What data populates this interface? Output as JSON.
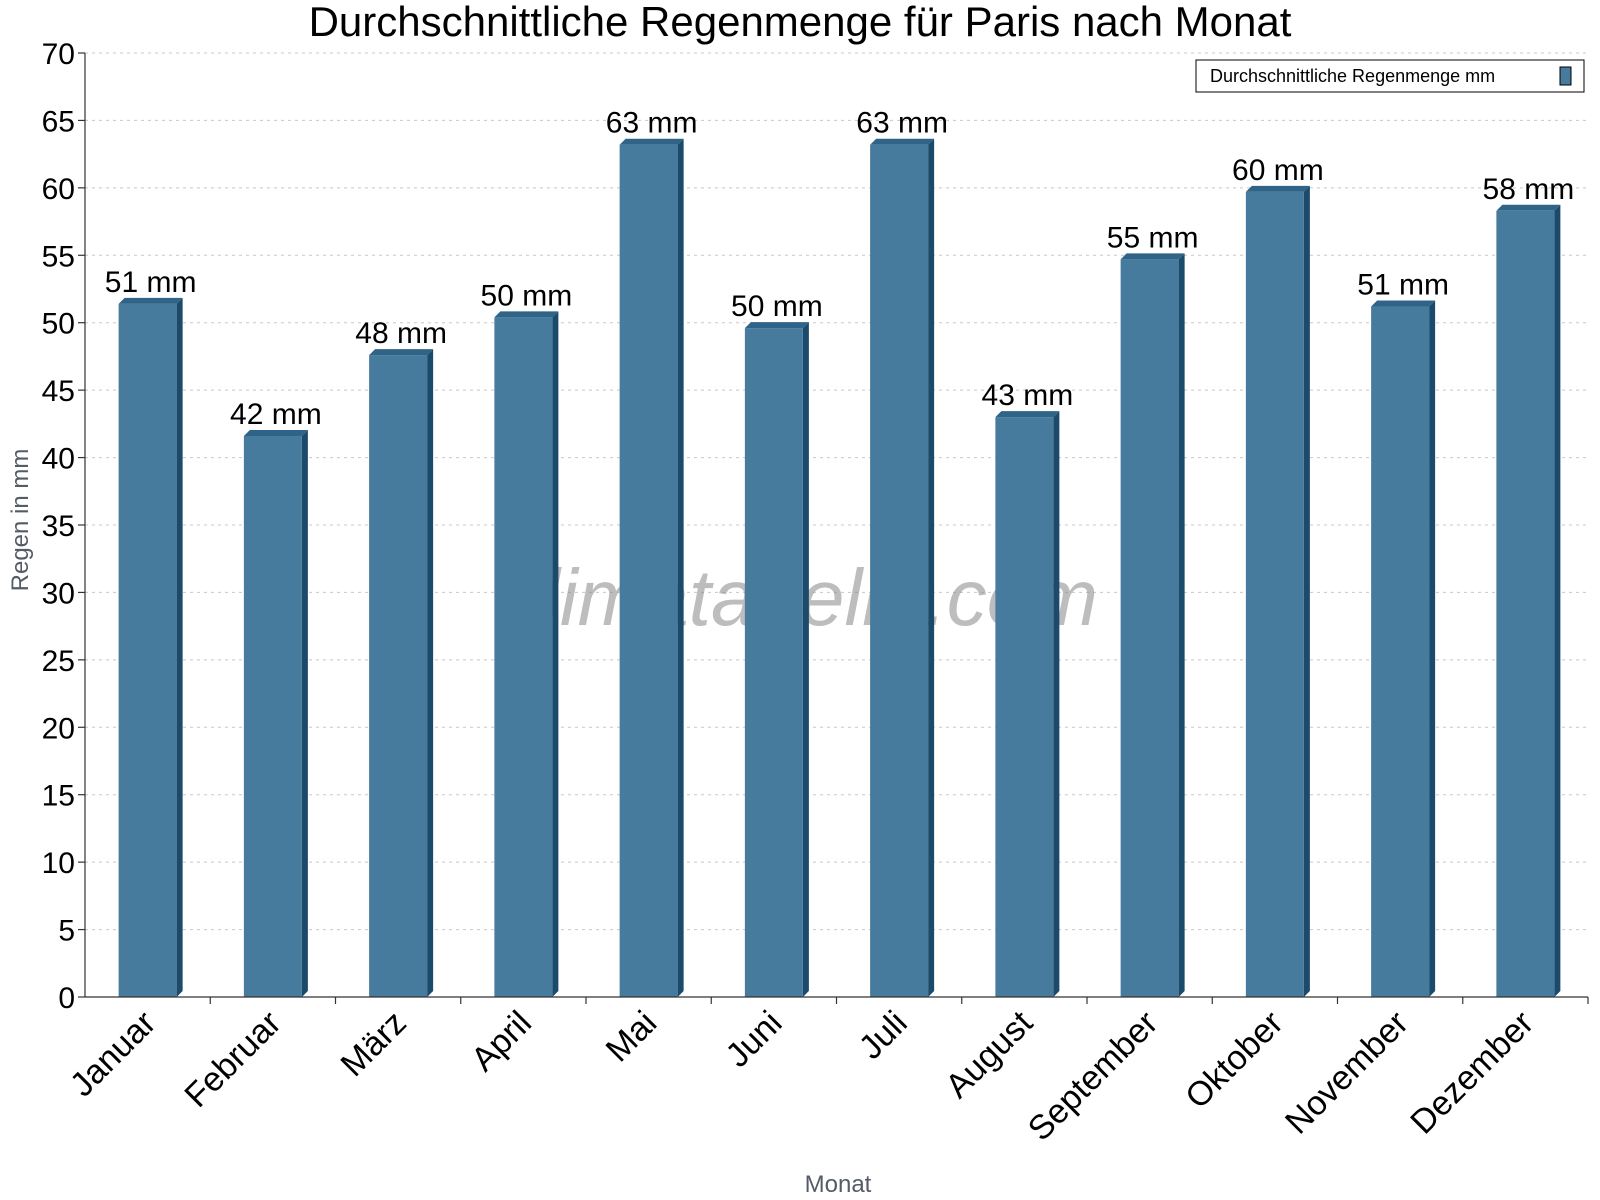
{
  "chart_data": {
    "type": "bar",
    "title": "Durchschnittliche Regenmenge für Paris nach Monat",
    "xlabel": "Monat",
    "ylabel": "Regen in mm",
    "ylim": [
      0,
      70
    ],
    "yticks": [
      0,
      5,
      10,
      15,
      20,
      25,
      30,
      35,
      40,
      45,
      50,
      55,
      60,
      65,
      70
    ],
    "grid": true,
    "legend_position": "top-right",
    "categories": [
      "Januar",
      "Februar",
      "März",
      "April",
      "Mai",
      "Juni",
      "Juli",
      "August",
      "September",
      "Oktober",
      "November",
      "Dezember"
    ],
    "series": [
      {
        "name": "Durchschnittliche Regenmenge mm",
        "values": [
          51.4,
          41.6,
          47.6,
          50.4,
          63.2,
          49.6,
          63.2,
          43.0,
          54.7,
          59.7,
          51.2,
          58.3
        ],
        "labels": [
          "51 mm",
          "42 mm",
          "48 mm",
          "50 mm",
          "63 mm",
          "50 mm",
          "63 mm",
          "43 mm",
          "55 mm",
          "60 mm",
          "51 mm",
          "58 mm"
        ]
      }
    ],
    "colors": {
      "bar_face": "#467b9e",
      "bar_side": "#1b4a6b",
      "bar_top": "#2f6488"
    },
    "watermark": "klimatabelle.com"
  }
}
